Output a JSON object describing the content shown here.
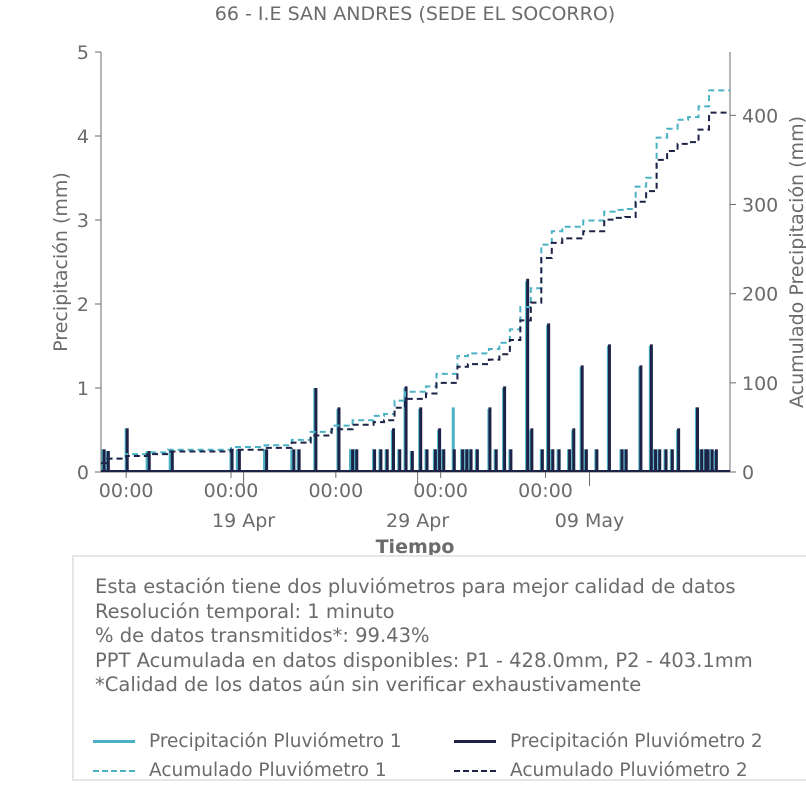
{
  "colors": {
    "p1": "#4bb2c5",
    "p2": "#1d2247",
    "text": "#6b6b6b",
    "axis": "#6b6b6b"
  },
  "chart_data": {
    "type": "line",
    "title": "66 - I.E SAN ANDRES (SEDE EL SOCORRO)",
    "xlabel": "Tiempo",
    "ylabel": "Precipitación (mm)",
    "y2label": "Acumulado Precipitación (mm)",
    "ylim": [
      0,
      5
    ],
    "y2lim": [
      0,
      471
    ],
    "yticks": [
      "0",
      "1",
      "2",
      "3",
      "4",
      "5"
    ],
    "y2ticks": [
      "0",
      "100",
      "200",
      "300",
      "400"
    ],
    "xlim": [
      "2025-04-11",
      "2025-05-11"
    ],
    "xticks_time": [
      "00:00",
      "00:00",
      "00:00",
      "00:00",
      "00:00"
    ],
    "xticks_date": [
      "19 Apr",
      "29 Apr",
      "09 May"
    ],
    "grid": false,
    "legend_placement": "bottom",
    "series": [
      {
        "name": "Precipitación Pluviómetro 1",
        "style": "solid",
        "x_days": [
          0.1,
          0.3,
          1.2,
          2.2,
          3.3,
          6.2,
          6.5,
          7.8,
          9.1,
          9.4,
          10.2,
          11.3,
          11.9,
          12.1,
          13.0,
          13.3,
          13.6,
          13.9,
          14.2,
          14.5,
          14.8,
          15.2,
          15.5,
          15.9,
          16.1,
          16.3,
          16.8,
          17.2,
          17.4,
          17.6,
          17.9,
          18.5,
          18.8,
          19.2,
          19.5,
          20.3,
          20.5,
          21.0,
          21.3,
          21.5,
          21.8,
          22.3,
          22.5,
          22.9,
          23.1,
          23.6,
          24.2,
          24.8,
          25.0,
          25.7,
          26.2,
          26.4,
          26.6,
          26.9,
          27.2,
          27.5,
          28.4,
          28.6,
          28.8,
          28.9,
          29.1,
          29.3
        ],
        "values": [
          0.27,
          0.25,
          0.52,
          0.25,
          0.25,
          0.27,
          0.27,
          0.27,
          0.27,
          0.27,
          1.0,
          0.75,
          0.27,
          0.27,
          0.27,
          0.27,
          0.27,
          0.5,
          0.27,
          1.0,
          0.25,
          0.75,
          0.27,
          0.27,
          0.5,
          0.27,
          0.77,
          0.27,
          0.27,
          0.27,
          0.27,
          0.75,
          0.27,
          1.0,
          0.27,
          2.27,
          0.5,
          0.27,
          1.75,
          0.27,
          0.27,
          0.27,
          0.5,
          1.25,
          0.27,
          0.27,
          1.5,
          0.27,
          0.27,
          1.25,
          1.5,
          0.27,
          0.27,
          0.27,
          0.27,
          0.5,
          0.77,
          0.27,
          0.27,
          0.27,
          0.27,
          0.25
        ]
      },
      {
        "name": "Precipitación Pluviómetro 2",
        "style": "solid",
        "x_days": [
          0.15,
          0.35,
          1.25,
          2.3,
          3.4,
          6.25,
          6.6,
          7.9,
          9.2,
          9.45,
          10.25,
          11.35,
          12.0,
          12.2,
          13.05,
          13.35,
          13.65,
          13.95,
          14.25,
          14.55,
          14.85,
          15.25,
          15.55,
          15.95,
          16.15,
          16.35,
          16.85,
          17.25,
          17.45,
          17.65,
          17.95,
          18.55,
          18.85,
          19.25,
          19.55,
          20.35,
          20.55,
          21.05,
          21.35,
          21.55,
          21.85,
          22.35,
          22.55,
          22.95,
          23.15,
          23.65,
          24.25,
          24.85,
          25.05,
          25.75,
          26.25,
          26.45,
          26.65,
          26.95,
          27.25,
          27.55,
          28.45,
          28.65,
          28.85,
          28.95,
          29.15,
          29.35
        ],
        "values": [
          0.27,
          0.25,
          0.52,
          0.25,
          0.25,
          0.27,
          0.27,
          0.27,
          0.27,
          0.27,
          1.0,
          0.77,
          0.27,
          0.27,
          0.27,
          0.27,
          0.27,
          0.52,
          0.27,
          1.02,
          0.25,
          0.77,
          0.27,
          0.27,
          0.52,
          0.27,
          0.27,
          0.27,
          0.27,
          0.27,
          0.27,
          0.77,
          0.27,
          1.02,
          0.27,
          2.3,
          0.52,
          0.27,
          1.77,
          0.27,
          0.27,
          0.27,
          0.52,
          1.27,
          0.27,
          0.27,
          1.52,
          0.27,
          0.27,
          1.27,
          1.52,
          0.27,
          0.27,
          0.27,
          0.27,
          0.52,
          0.77,
          0.27,
          0.27,
          0.27,
          0.27,
          0.27
        ]
      },
      {
        "name": "Acumulado Pluviómetro 1",
        "style": "dashed",
        "x_days": [
          0,
          0.3,
          1.2,
          2.2,
          3.2,
          6.2,
          7.8,
          9.1,
          10.0,
          11.0,
          12.0,
          13.0,
          13.5,
          14.0,
          14.5,
          15.5,
          16.0,
          17.0,
          17.5,
          18.5,
          19.0,
          19.5,
          20.0,
          20.5,
          21.0,
          21.5,
          22.0,
          23.0,
          24.0,
          24.5,
          25.0,
          25.5,
          26.0,
          26.5,
          27.0,
          27.5,
          28.0,
          28.5,
          29.0,
          29.5,
          30.0
        ],
        "values": [
          10,
          15,
          20,
          22,
          25,
          28,
          30,
          36,
          45,
          52,
          58,
          63,
          65,
          80,
          90,
          96,
          110,
          130,
          133,
          138,
          145,
          160,
          185,
          206,
          255,
          270,
          275,
          282,
          292,
          294,
          295,
          320,
          330,
          375,
          385,
          395,
          398,
          410,
          428,
          428,
          428
        ]
      },
      {
        "name": "Acumulado Pluviómetro 2",
        "style": "dashed",
        "x_days": [
          0,
          0.3,
          1.2,
          2.2,
          3.2,
          6.2,
          7.8,
          9.1,
          10.0,
          11.0,
          12.0,
          13.0,
          13.5,
          14.0,
          14.5,
          15.5,
          16.0,
          17.0,
          17.5,
          18.5,
          19.0,
          19.5,
          20.0,
          20.5,
          21.0,
          21.5,
          22.0,
          23.0,
          24.0,
          24.5,
          25.0,
          25.5,
          26.0,
          26.5,
          27.0,
          27.5,
          28.0,
          28.5,
          29.0,
          29.5,
          30.0
        ],
        "values": [
          10,
          15,
          18,
          20,
          23,
          25,
          27,
          33,
          41,
          48,
          53,
          56,
          58,
          72,
          82,
          88,
          100,
          118,
          121,
          126,
          132,
          148,
          170,
          190,
          240,
          257,
          262,
          270,
          283,
          285,
          286,
          303,
          315,
          350,
          360,
          368,
          370,
          384,
          403,
          403,
          403
        ]
      }
    ]
  },
  "info": {
    "lines": [
      "Esta estación tiene dos pluviómetros para mejor calidad de datos",
      "Resolución temporal: 1 minuto",
      "% de datos transmitidos*: 99.43%",
      "PPT Acumulada en datos disponibles: P1 - 428.0mm, P2 - 403.1mm",
      "*Calidad de los datos aún sin verificar exhaustivamente"
    ]
  },
  "legend": {
    "p1": "Precipitación Pluviómetro 1",
    "p2": "Precipitación Pluviómetro 2",
    "a1": "Acumulado Pluviómetro 1",
    "a2": "Acumulado Pluviómetro 2"
  }
}
